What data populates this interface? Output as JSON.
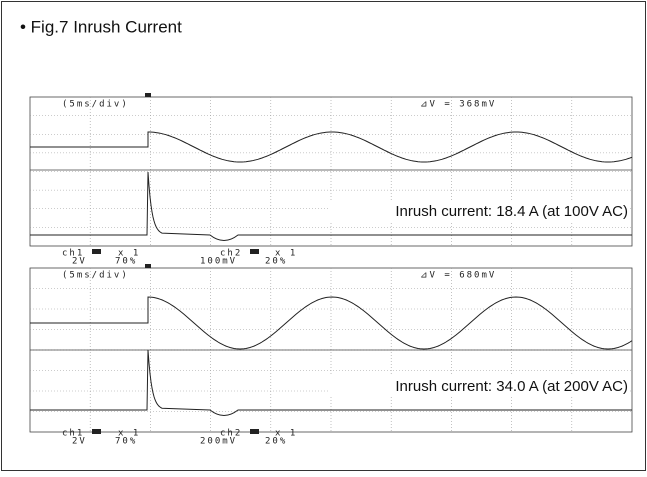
{
  "title": "• Fig.7  Inrush Current",
  "scopes": [
    {
      "timebase": "(5ms/div)",
      "delta": "⊿V = 368mV",
      "ch1": "ch1",
      "ch1_probe": "x 1",
      "ch1_scale": "2V",
      "ch1_pos": "70%",
      "ch2": "ch2",
      "ch2_probe": "x 1",
      "ch2_scale": "100mV",
      "ch2_pos": "20%",
      "annotation": "Inrush current: 18.4 A (at 100V AC)"
    },
    {
      "timebase": "(5ms/div)",
      "delta": "⊿V = 680mV",
      "ch1": "ch1",
      "ch1_probe": "x 1",
      "ch1_scale": "2V",
      "ch1_pos": "70%",
      "ch2": "ch2",
      "ch2_probe": "x 1",
      "ch2_scale": "200mV",
      "ch2_pos": "20%",
      "annotation": "Inrush current: 34.0 A (at 200V AC)"
    }
  ]
}
